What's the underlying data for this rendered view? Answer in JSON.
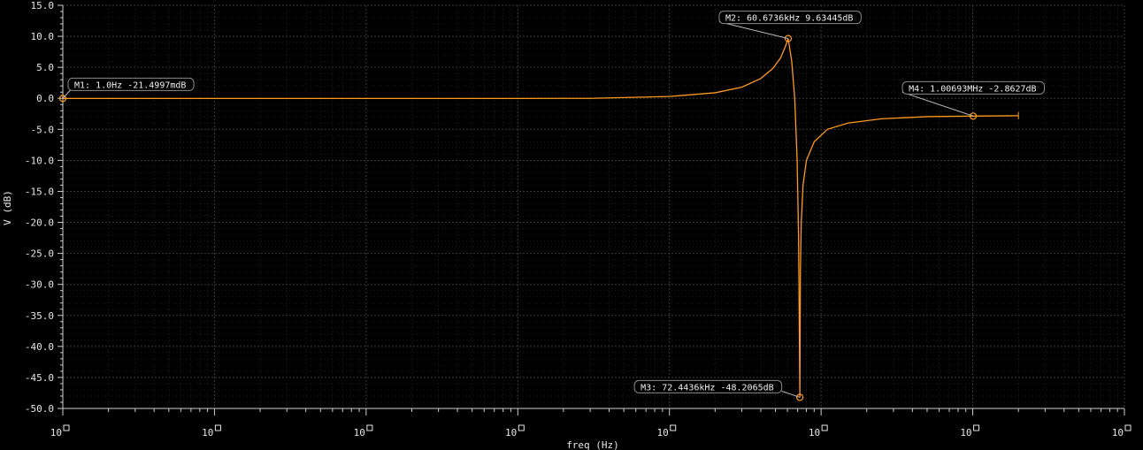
{
  "chart_data": {
    "type": "line",
    "xlabel": "freq (Hz)",
    "ylabel": "V (dB)",
    "x_scale": "log",
    "xlim": [
      1,
      10000000
    ],
    "ylim": [
      -50,
      15
    ],
    "y_ticks": [
      "15.0",
      "10.0",
      "5.0",
      "0.0",
      "-5.0",
      "-10.0",
      "-15.0",
      "-20.0",
      "-25.0",
      "-30.0",
      "-35.0",
      "-40.0",
      "-45.0",
      "-50.0"
    ],
    "x_ticks": [
      {
        "base": "10",
        "exp": "0"
      },
      {
        "base": "10",
        "exp": "1"
      },
      {
        "base": "10",
        "exp": "2"
      },
      {
        "base": "10",
        "exp": "3"
      },
      {
        "base": "10",
        "exp": "4"
      },
      {
        "base": "10",
        "exp": "5"
      },
      {
        "base": "10",
        "exp": "6"
      },
      {
        "base": "10",
        "exp": "7"
      }
    ],
    "grid": true,
    "series": [
      {
        "color": "#ff9a1f",
        "x": [
          1,
          10,
          100,
          1000,
          3000,
          10000,
          20000,
          30000,
          40000,
          48000,
          54000,
          58000,
          60673.6,
          64000,
          67000,
          69500,
          71000,
          72000,
          72443.6,
          73000,
          74000,
          76000,
          80000,
          90000,
          110000,
          150000,
          250000,
          500000,
          1006930,
          2000000
        ],
        "y": [
          -0.0215,
          -0.02,
          -0.02,
          -0.02,
          0.0,
          0.3,
          0.9,
          1.8,
          3.2,
          4.8,
          6.5,
          8.3,
          9.63,
          6.0,
          0.0,
          -10.0,
          -22.0,
          -40.0,
          -48.21,
          -28.0,
          -20.0,
          -14.0,
          -10.0,
          -7.0,
          -5.0,
          -4.0,
          -3.3,
          -2.95,
          -2.86,
          -2.8
        ]
      }
    ],
    "markers": [
      {
        "label": "M1: 1.0Hz -21.4997mdB",
        "x": 1,
        "y": -0.0215
      },
      {
        "label": "M2: 60.6736kHz 9.63445dB",
        "x": 60673.6,
        "y": 9.63445
      },
      {
        "label": "M3: 72.4436kHz -48.2065dB",
        "x": 72443.6,
        "y": -48.2065
      },
      {
        "label": "M4: 1.00693MHz -2.8627dB",
        "x": 1006930,
        "y": -2.8627
      }
    ]
  }
}
